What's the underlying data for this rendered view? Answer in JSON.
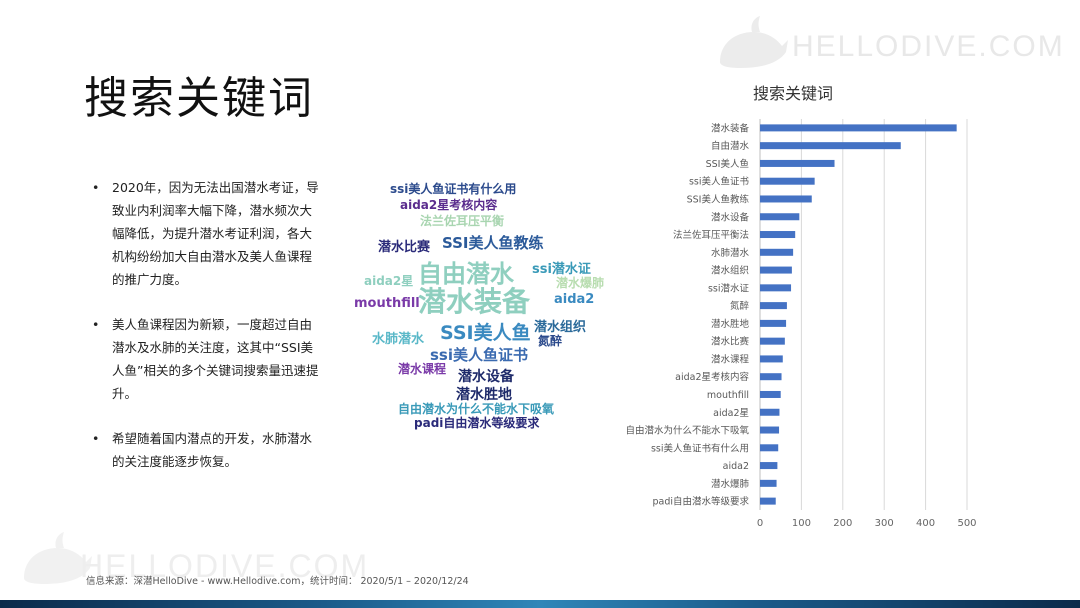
{
  "watermark": {
    "brand": "HELLODIVE.COM"
  },
  "title": "搜索关键词",
  "bullets": [
    "2020年，因为无法出国潜水考证，导致业内利润率大幅下降，潜水频次大幅降低，为提升潜水考证利润，各大机构纷纷加大自由潜水及美人鱼课程的推广力度。",
    "美人鱼课程因为新颖，一度超过自由潜水及水肺的关注度，这其中“SSI美人鱼”相关的多个关键词搜索量迅速提升。",
    "希望随着国内潜点的开发，水肺潜水的关注度能逐步恢复。"
  ],
  "wordcloud": [
    {
      "text": "ssi美人鱼证书有什么用",
      "color": "#2b4a8c"
    },
    {
      "text": "aida2星考核内容",
      "color": "#5b2d8e"
    },
    {
      "text": "法兰佐耳压平衡",
      "color": "#a8d5b0"
    },
    {
      "text": "潜水比赛",
      "color": "#2b2b7a"
    },
    {
      "text": "SSI美人鱼教练",
      "color": "#2b5a9a"
    },
    {
      "text": "aida2星",
      "color": "#8fcfbf"
    },
    {
      "text": "自由潜水",
      "color": "#8fcfbf"
    },
    {
      "text": "ssi潜水证",
      "color": "#3a9ab8"
    },
    {
      "text": "潜水爆肺",
      "color": "#b8ddb0"
    },
    {
      "text": "mouthfill",
      "color": "#7a3aa8"
    },
    {
      "text": "潜水装备",
      "color": "#8fcfbf"
    },
    {
      "text": "aida2",
      "color": "#3a8ac0"
    },
    {
      "text": "水肺潜水",
      "color": "#5ab8c8"
    },
    {
      "text": "SSI美人鱼",
      "color": "#3a8ac0"
    },
    {
      "text": "潜水组织",
      "color": "#2b6a9a"
    },
    {
      "text": "氮醉",
      "color": "#2b4a8c"
    },
    {
      "text": "ssi美人鱼证书",
      "color": "#3a6ab0"
    },
    {
      "text": "潜水课程",
      "color": "#7a3aa8"
    },
    {
      "text": "潜水设备",
      "color": "#1e2a6a"
    },
    {
      "text": "潜水胜地",
      "color": "#1e2a6a"
    },
    {
      "text": "自由潜水为什么不能水下吸氧",
      "color": "#3a9ab8"
    },
    {
      "text": "padi自由潜水等级要求",
      "color": "#2b2b7a"
    }
  ],
  "chart_data": {
    "type": "bar",
    "orientation": "horizontal",
    "title": "搜索关键词",
    "categories": [
      "潜水装备",
      "自由潜水",
      "SSI美人鱼",
      "ssi美人鱼证书",
      "SSI美人鱼教练",
      "潜水设备",
      "法兰佐耳压平衡法",
      "水肺潜水",
      "潜水组织",
      "ssi潜水证",
      "氮醉",
      "潜水胜地",
      "潜水比赛",
      "潜水课程",
      "aida2星考核内容",
      "mouthfill",
      "aida2星",
      "自由潜水为什么不能水下吸氧",
      "ssi美人鱼证书有什么用",
      "aida2",
      "潜水爆肺",
      "padi自由潜水等级要求"
    ],
    "values": [
      475,
      340,
      180,
      132,
      125,
      95,
      85,
      80,
      77,
      75,
      65,
      63,
      60,
      55,
      52,
      50,
      47,
      46,
      44,
      42,
      40,
      38
    ],
    "xlim": [
      0,
      500
    ],
    "xticks": [
      0,
      100,
      200,
      300,
      400,
      500
    ],
    "grid": true,
    "color": "#4472c4"
  },
  "footer": "信息来源：深潜HelloDive - www.Hellodive.com，统计时间：  2020/5/1 – 2020/12/24"
}
